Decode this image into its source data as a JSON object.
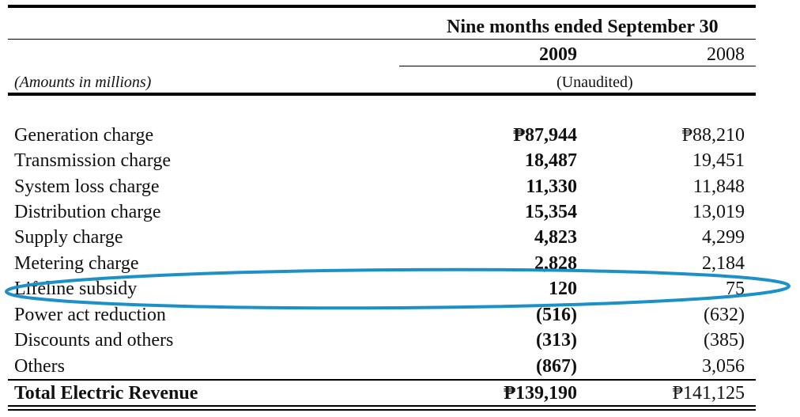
{
  "header": {
    "period_title": "Nine months ended September 30",
    "year_current": "2009",
    "year_prior": "2008",
    "amounts_note": "(Amounts in millions)",
    "audit_status": "(Unaudited)"
  },
  "rows": [
    {
      "label": "Generation charge",
      "v2009": "₱87,944",
      "v2008": "₱88,210"
    },
    {
      "label": "Transmission charge",
      "v2009": "18,487",
      "v2008": "19,451"
    },
    {
      "label": "System loss charge",
      "v2009": "11,330",
      "v2008": "11,848"
    },
    {
      "label": "Distribution charge",
      "v2009": "15,354",
      "v2008": "13,019"
    },
    {
      "label": "Supply charge",
      "v2009": "4,823",
      "v2008": "4,299"
    },
    {
      "label": "Metering charge",
      "v2009": "2,828",
      "v2008": "2,184"
    },
    {
      "label": "Lifeline subsidy",
      "v2009": "120",
      "v2008": "75"
    },
    {
      "label": "Power act reduction",
      "v2009": "(516)",
      "v2008": "(632)"
    },
    {
      "label": "Discounts and others",
      "v2009": "(313)",
      "v2008": "(385)"
    },
    {
      "label": "Others",
      "v2009": "(867)",
      "v2008": "3,056"
    }
  ],
  "total": {
    "label": "Total Electric Revenue",
    "v2009": "₱139,190",
    "v2008": "₱141,125"
  },
  "colors": {
    "highlight_ellipse": "#1e90c8",
    "rules": "#000000"
  }
}
